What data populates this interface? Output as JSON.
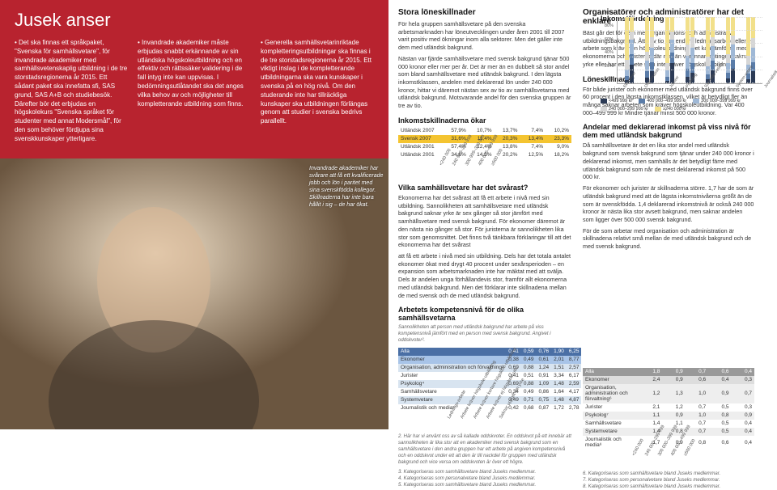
{
  "colors": {
    "red": "#b8232f",
    "yellow": "#f4c430",
    "blue_dark": "#4a6fa5",
    "blue_mid": "#a8c4e8",
    "blue_light": "#d8e4f0",
    "grey_dark": "#999999",
    "grey_mid": "#dddddd",
    "grey_light": "#eeeeee",
    "seg1": "#2b3a55",
    "seg2": "#5a7ca8",
    "seg3": "#9fb8d6",
    "seg4": "#d6d6d6",
    "seg5": "#f2e08a"
  },
  "redblock": {
    "title": "Jusek anser",
    "col1": "• Det ska finnas ett språkpaket, \"Svenska för samhällsvetare\", för invandrade akademiker med samhällsvetenskaplig utbildning i de tre storstadsregionerna år 2015. Ett sådant paket ska innefatta sfi, SAS grund, SAS A+B och studiebesök. Därefter bör det erbjudas en högskolekurs \"Svenska språket för studenter med annat Modersmål\", för den som behöver fördjupa sina svenskkunskaper ytterligare.",
    "col2": "• Invandrade akademiker måste erbjudas snabbt erkännande av sin utländska högskoleutbildning och en effektiv och rättssäker validering i de fall intyg inte kan uppvisas. I bedömningsutlåtandet ska det anges vilka behov av och möjligheter till kompletterande utbildning som finns.",
    "col3": "• Generella samhällsvetarinriktade kompletteringsutbildningar ska finnas i de tre storstadsregionerna år 2015. Ett viktigt inslag i de kompletterande utbildningarna ska vara kunskaper i svenska på en hög nivå. Om den studerande inte har tillräckliga kunskaper ska utbildningen förlängas genom att studier i svenska bedrivs parallellt."
  },
  "photo_side": "Invandrade akademiker har svårare att få ett kvalificerade jobb och lön i paritet med sina svenskfödda kollegor. Skillnaderna har inte bara hållit i sig – de har ökat.",
  "rc1": {
    "h_stora": "Stora löneskillnader",
    "p_stora1": "För hela gruppen samhällsvetare på den svenska arbetsmarknaden har löneutvecklingen under åren 2001 till 2007 varit positiv med ökningar inom alla sektorer. Men det gäller inte dem med utländsk bakgrund.",
    "p_stora2": "Nästan var fjärde samhällsvetare med svensk bakgrund tjänar 500 000 kronor eller mer per år. Det är mer än en dubbelt så stor andel som bland samhällsvetare med utländsk bakgrund. I den lägsta inkomstklassen, andelen med deklarerad lön under 240 000 kronor, hittar vi däremot nästan sex av tio av samhällsvetarna med utländsk bakgrund. Motsvarande andel för den svenska gruppen är tre av tio.",
    "h_ink": "Inkomstskillnaderna ökar",
    "income_table": {
      "rows": [
        {
          "label": "Utländsk 2007",
          "vals": [
            "57,9%",
            "10,7%",
            "13,7%",
            "7,4%",
            "10,2%"
          ],
          "hl": false
        },
        {
          "label": "Svensk 2007",
          "vals": [
            "31,6%",
            "11,4%",
            "20,3%",
            "13,4%",
            "23,3%"
          ],
          "hl": true
        },
        {
          "label": "Utländsk 2001",
          "vals": [
            "57,4%",
            "12,4%",
            "13,8%",
            "7,4%",
            "9,0%"
          ],
          "hl": false
        },
        {
          "label": "Utländsk 2001",
          "vals": [
            "34,6%",
            "14,5%",
            "20,2%",
            "12,5%",
            "18,2%"
          ],
          "hl": false
        }
      ],
      "axis": [
        "<240 000",
        "240 999–299 999",
        "300 999–399 999",
        "400 000–499 999",
        "≥500 000"
      ]
    },
    "h_vilka": "Vilka samhällsvetare har det svårast?",
    "p_vilka1": "Ekonomerna har det svårast att få ett arbete i nivå med sin utbildning. Sannolikheten att samhällsvetare med utländsk bakgrund saknar yrke är sex gånger så stor jämfört med samhällsvetare med svensk bakgrund. För ekonomer däremot är den nästa nio gånger så stor. För juristerna är sannolikheten lika stor som genomsnittet. Det finns två tänkbara förklaringar till att det ekonomerna har det svårast",
    "p_vilka2": "att få ett arbete i nivå med sin utbildning. Dels har det totala antalet ekonomer ökat med drygt 40 procent under sexårsperioden – en expansion som arbetsmarknaden inte har mäktat med att svälja. Dels är andelen unga förhållandevis stor, framför allt ekonomerna med utländsk bakgrund. Men det förklarar inte skillnadena mellan de med svensk och de med utländsk bakgrund.",
    "h_komp": "Arbetets kompetensnivå för de olika samhällsvetarna",
    "komp_sub": "Sannolikheten att person med utländsk bakgrund har arbete på viss kompetensnivå jämfört med en person med svensk bakgrund. Angivet i oddskvoter².",
    "komp_table": {
      "header": [
        "Alla",
        "0,41",
        "0,59",
        "0,76",
        "1,90",
        "6,25"
      ],
      "rows": [
        {
          "label": "Ekonomer",
          "vals": [
            "0,38",
            "0,49",
            "0,61",
            "2,01",
            "8,77"
          ],
          "cls": "ek"
        },
        {
          "label": "Organisation, administration och förvaltning³",
          "vals": [
            "0,69",
            "0,88",
            "1,24",
            "1,51",
            "2,57"
          ],
          "cls": "org"
        },
        {
          "label": "Jurister",
          "vals": [
            "0,41",
            "0,51",
            "0,91",
            "3,34",
            "6,17"
          ],
          "cls": ""
        },
        {
          "label": "Psykolog⁴",
          "vals": [
            "0,69",
            "0,88",
            "1,09",
            "1,48",
            "2,59"
          ],
          "cls": "org"
        },
        {
          "label": "Samhällsvetare",
          "vals": [
            "0,34",
            "0,49",
            "0,86",
            "1,64",
            "4,17"
          ],
          "cls": ""
        },
        {
          "label": "Systemvetare",
          "vals": [
            "0,49",
            "0,71",
            "0,75",
            "1,48",
            "4,87"
          ],
          "cls": "org"
        },
        {
          "label": "Journalistik och media⁵",
          "vals": [
            "0,42",
            "0,68",
            "0,87",
            "1,72",
            "2,78"
          ],
          "cls": ""
        }
      ],
      "axis": [
        "Lednings-arbete",
        "Arbete kräver högskole-utbildning",
        "Arbete kräver kortare högskole-utbildning",
        "Arbete kräver ej högskole-utb.",
        "Saknar uppgift om yrke"
      ]
    },
    "foot_komp1": "2. Här har vi använt oss av så kallade oddskvoter. En oddskvot på ett innebär att sannolikheten är lika stor att en akademiker med svensk bakgrund som en samhällsvetare i den andra gruppen har ett arbete på angiven kompetensnivå och en oddskvot under ett att den är till nackdel för gruppen med utländsk bakgrund och vice versa om oddskvoten är över ett högre.",
    "foot_komp2": "3. Kategoriseras som samhällsvetare bland Juseks medlemmar.\n4. Kategoriseras som personalvetare bland Juseks medlemmar.\n5. Kategoriseras som samhällsvetare bland Juseks medlemmar."
  },
  "rc2": {
    "h_org": "Organisatörer och administratörer har det enklare",
    "p_org1": "Bäst går det för dem med organisations- och administrativ utbildningsbakgrund. Åtta av tio har endera ledningsarbete eller ett arbete som kräver en högskoleutbildning. Det kan jämföras med ekonomerna och juristerna där mer än varannan antingen saknar yrke eller har ett arbete som inte kräver högskoleutbildning.",
    "h_lone": "Löneskillnader",
    "p_lone1": "För både jurister och ekonomer med utländsk bakgrund finns över 60 procent i den lägsta inkomstklassen, vilket är betydligt fler än många saknar arbeten som kräver högskoleutbildning. Var 400 000–499 999 kr\nMindre tjänar minst 500 000 kronor.",
    "h_andel": "Andelar med deklarerad inkomst på viss nivå för dem med utländsk bakgrund",
    "p_andel1": "Då samhällsvetare är det en lika stor andel med utländsk bakgrund som svensk bakgrund som tjänar under 240 000 kronor i deklarerad inkomst, men samhälls är det betydligt färre med utländsk bakgrund som når de mest deklarerad inkomst på 500 000 kr.",
    "p_andel2": "För ekonomer och jurister är skillnaderna större. 1,7 har de som är utländsk bakgrund med att de lägsta inkomstnivåerna größt än de som är svenskfödda. 1,4 deklarerad inkomstnivå är också 240 000 kronor är nästa lika stor avsett bakgrund, men saknar andelen som ligger över 500 000 svensk bakgrund.",
    "p_andel3": "För de som arbetar med organisation och administration är skillnadena relativt små mellan de med utländsk bakgrund och de med svensk bakgrund.",
    "andel_table": {
      "header": [
        "Alla",
        "1,8",
        "0,9",
        "0,7",
        "0,6",
        "0,4"
      ],
      "rows": [
        {
          "label": "Ekonomer",
          "vals": [
            "2,4",
            "0,9",
            "0,6",
            "0,4",
            "0,3"
          ],
          "cls": "ek"
        },
        {
          "label": "Organisation, administration och förvaltning⁶",
          "vals": [
            "1,2",
            "1,3",
            "1,0",
            "0,9",
            "0,7"
          ],
          "cls": "org"
        },
        {
          "label": "Jurister",
          "vals": [
            "2,1",
            "1,2",
            "0,7",
            "0,5",
            "0,3"
          ],
          "cls": ""
        },
        {
          "label": "Psykolog⁷",
          "vals": [
            "1,1",
            "0,9",
            "1,0",
            "0,8",
            "0,9"
          ],
          "cls": "org"
        },
        {
          "label": "Samhällsvetare",
          "vals": [
            "1,4",
            "1,1",
            "0,7",
            "0,5",
            "0,4"
          ],
          "cls": ""
        },
        {
          "label": "Systemvetare",
          "vals": [
            "1,4",
            "0,8",
            "0,7",
            "0,5",
            "0,4"
          ],
          "cls": "org"
        },
        {
          "label": "Journalistik och media⁸",
          "vals": [
            "1,7",
            "0,9",
            "0,8",
            "0,6",
            "0,4"
          ],
          "cls": ""
        }
      ],
      "axis": [
        "<240 000",
        "240 000–299 999",
        "300 000–399 999",
        "400 000–499 999",
        "≥500 000"
      ]
    },
    "foot_andel": "6. Kategoriseras som samhällsvetare bland Juseks medlemmar.\n7. Kategoriseras som personalvetare bland Juseks medlemmar.\n8. Kategoriseras som samhällsvetare bland Juseks medlemmar.",
    "chart": {
      "title": "Inkomstfördelning",
      "ylim": 100,
      "ytick": 20,
      "categories": [
        "Ekonomer",
        "Organisation",
        "Jurister",
        "Psykolog",
        "Samhälls-vetare",
        "System-vetare",
        "Journalistik"
      ],
      "legend": [
        {
          "label": "<499 999 kr",
          "color": "#2b3a55"
        },
        {
          "label": "400 000–499 999 kr",
          "color": "#5a7ca8"
        },
        {
          "label": "300 000–399 999 kr",
          "color": "#9fb8d6"
        },
        {
          "label": "240 000–299 999 kr",
          "color": "#d6d6d6"
        },
        {
          "label": "≥240 000 kr",
          "color": "#f2e08a"
        }
      ],
      "series_utl": [
        [
          5,
          6,
          10,
          14,
          65
        ],
        [
          8,
          10,
          16,
          14,
          52
        ],
        [
          4,
          6,
          9,
          12,
          69
        ],
        [
          10,
          12,
          20,
          16,
          42
        ],
        [
          6,
          8,
          12,
          14,
          60
        ],
        [
          7,
          9,
          14,
          14,
          56
        ],
        [
          6,
          9,
          13,
          14,
          58
        ]
      ],
      "series_sv": [
        [
          28,
          16,
          22,
          12,
          22
        ],
        [
          18,
          14,
          22,
          16,
          30
        ],
        [
          30,
          16,
          20,
          12,
          22
        ],
        [
          16,
          14,
          24,
          16,
          30
        ],
        [
          20,
          14,
          22,
          14,
          30
        ],
        [
          22,
          14,
          22,
          14,
          28
        ],
        [
          18,
          14,
          22,
          14,
          32
        ]
      ]
    }
  }
}
